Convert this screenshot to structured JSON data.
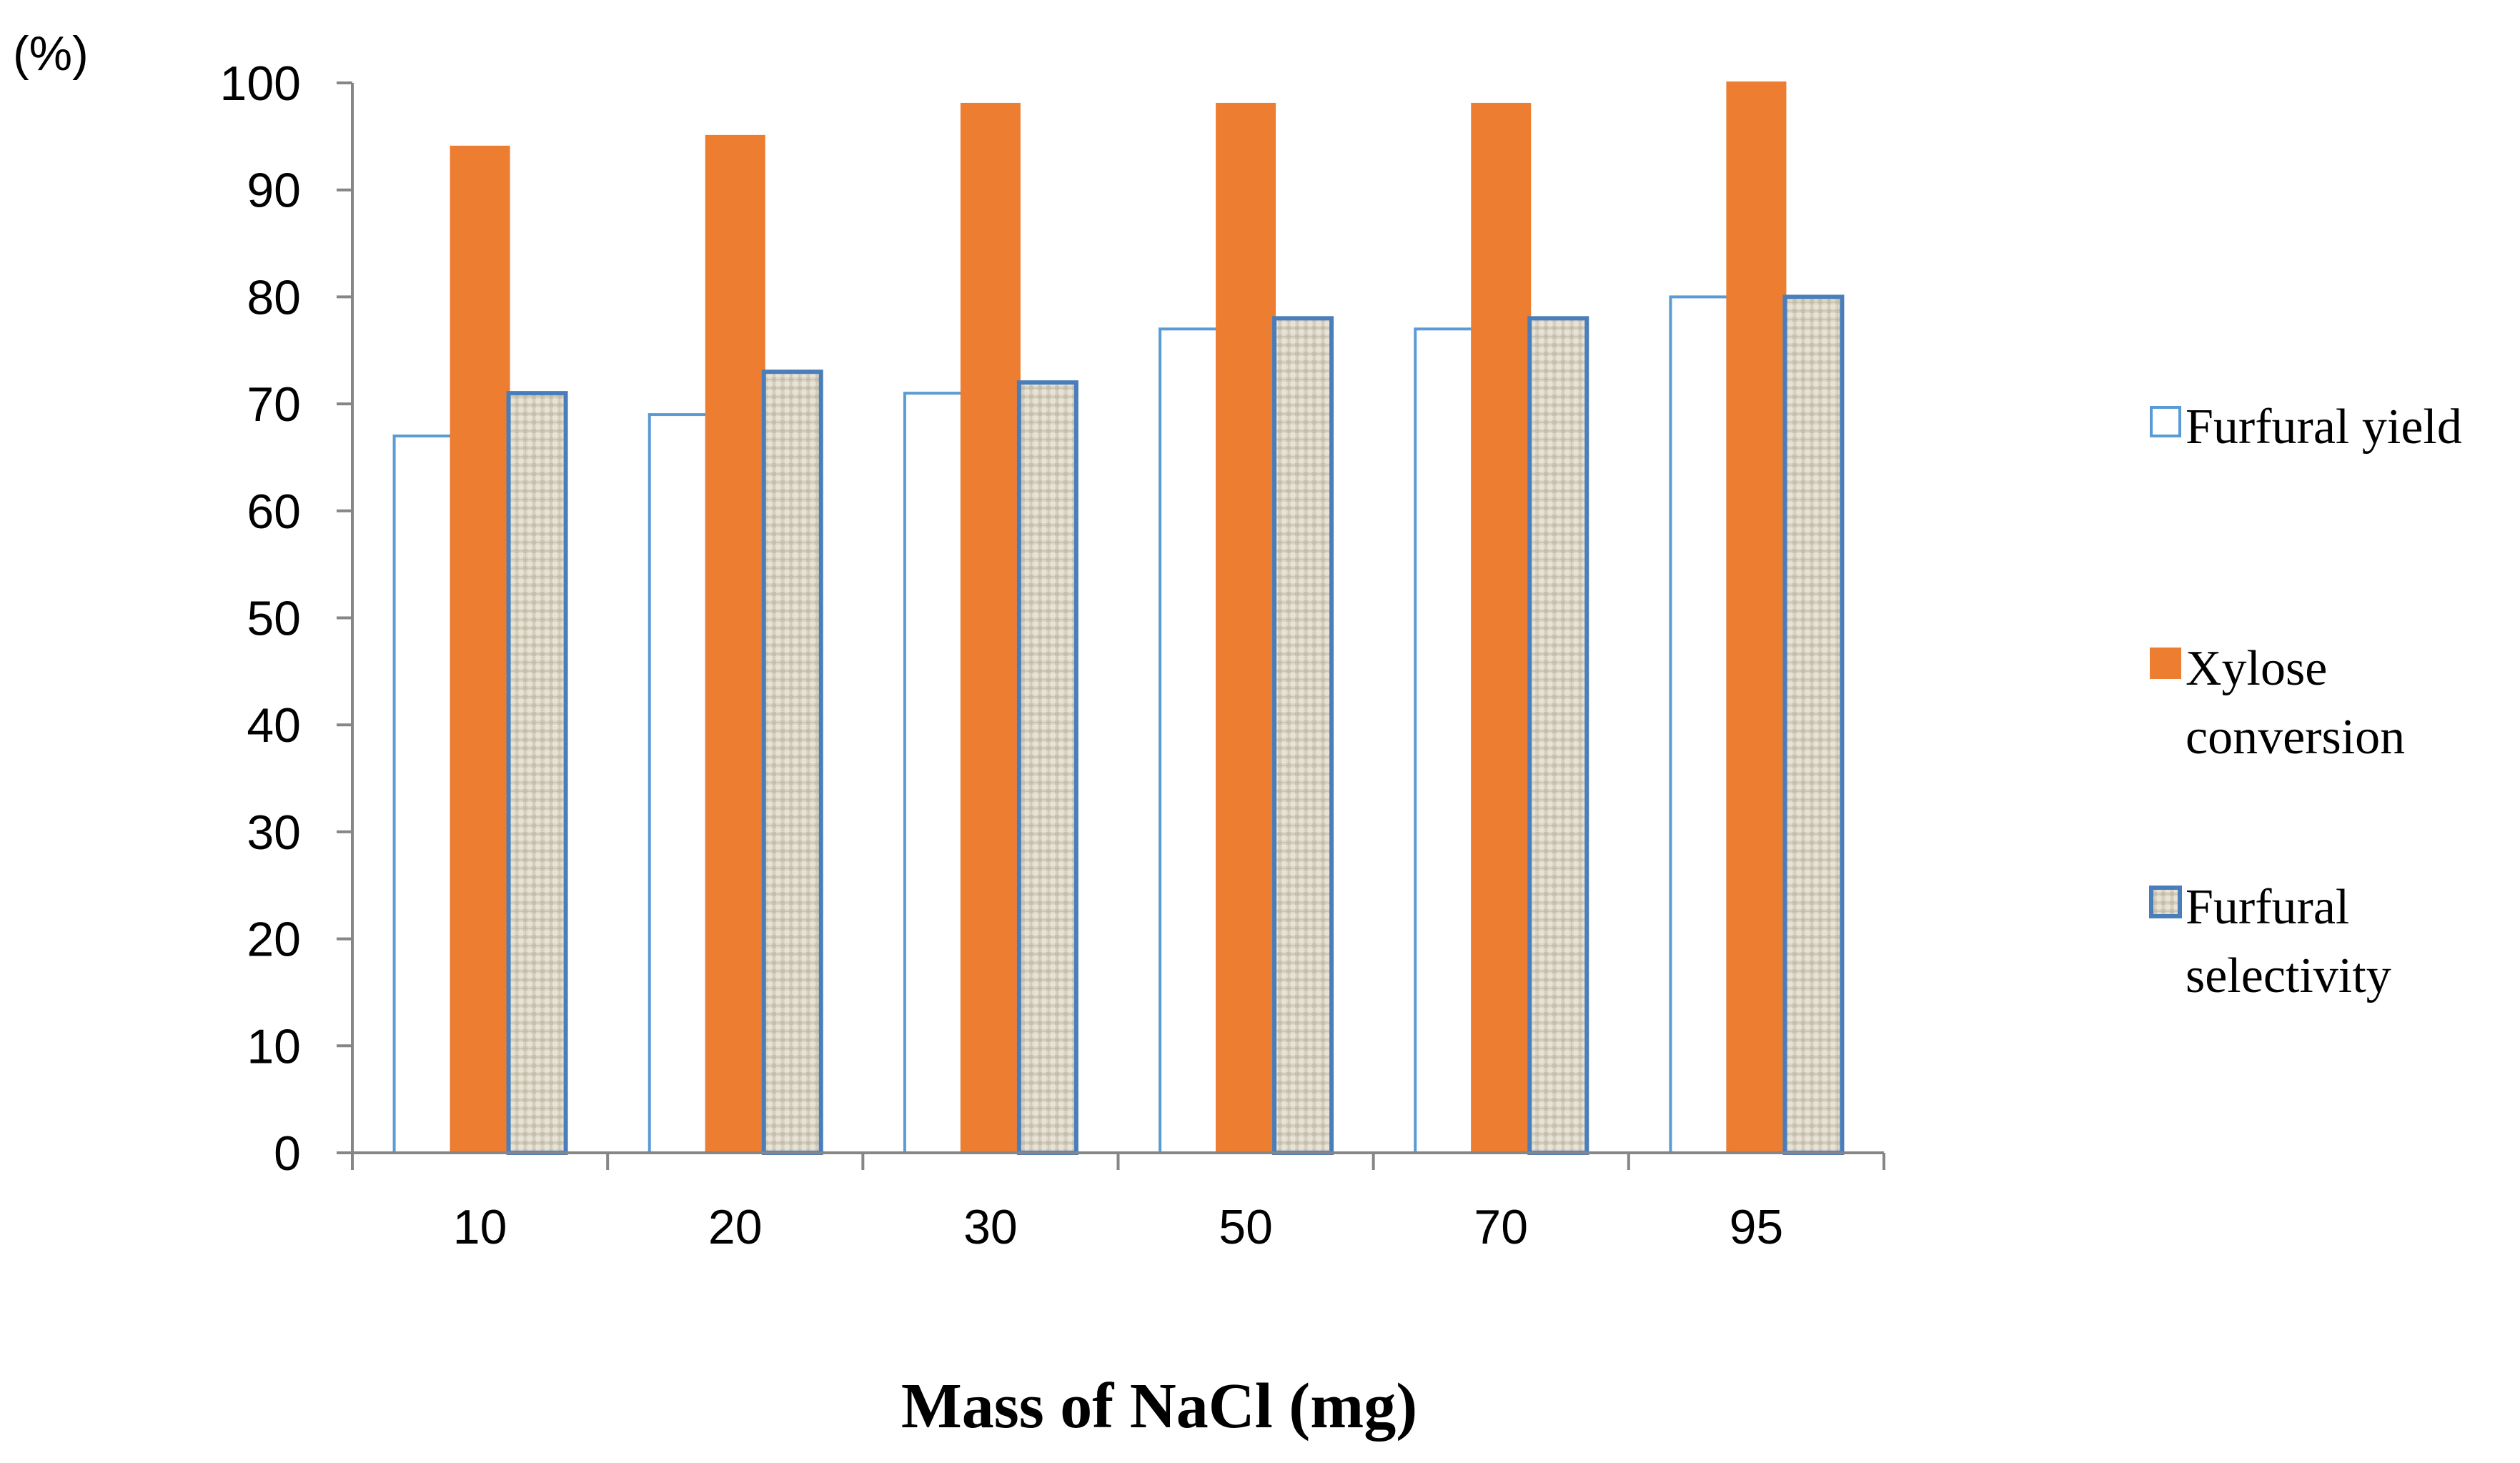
{
  "chart_data": {
    "type": "bar",
    "title": "",
    "ylabel": "(%)",
    "xlabel": "Mass of NaCl (mg)",
    "categories": [
      "10",
      "20",
      "30",
      "50",
      "70",
      "95"
    ],
    "ylim": [
      0,
      100
    ],
    "yticks": [
      "0",
      "10",
      "20",
      "30",
      "40",
      "50",
      "60",
      "70",
      "80",
      "90",
      "100"
    ],
    "grid": false,
    "legend_position": "right",
    "series": [
      {
        "name": "Furfural yield",
        "legend_lines": [
          "Furfural yield"
        ],
        "values": [
          67,
          69,
          71,
          77,
          77,
          80
        ],
        "fill": "#ffffff",
        "stroke": "#5b9bd5"
      },
      {
        "name": "Xylose conversion",
        "legend_lines": [
          "Xylose",
          "conversion"
        ],
        "values": [
          94,
          95,
          98,
          98,
          98,
          100
        ],
        "fill": "#ed7d31",
        "stroke": "#ed7d31"
      },
      {
        "name": "Furfural selectivity",
        "legend_lines": [
          "Furfural",
          "selectivity"
        ],
        "values": [
          71,
          73,
          72,
          78,
          78,
          80
        ],
        "fill": "#ddd8c8",
        "stroke": "#4a7ebb"
      }
    ]
  }
}
